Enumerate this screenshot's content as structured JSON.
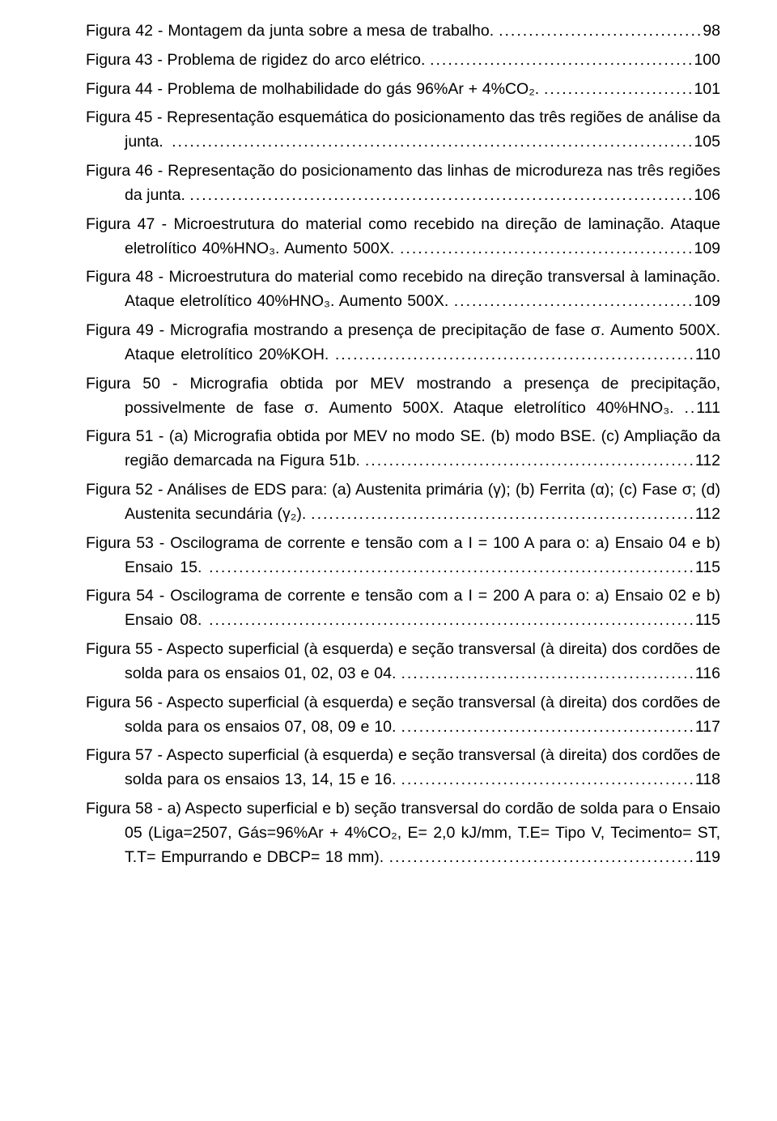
{
  "entries": [
    {
      "label": "Figura 42 - Montagem da junta sobre a mesa de trabalho.",
      "page": "98"
    },
    {
      "label": "Figura 43 - Problema de rigidez do arco elétrico.",
      "page": "100"
    },
    {
      "label": "Figura 44 - Problema de molhabilidade do gás 96%Ar + 4%CO₂.",
      "page": "101"
    },
    {
      "label": "Figura 45 - Representação esquemática do posicionamento das três regiões de análise da junta.",
      "page": "105"
    },
    {
      "label": "Figura 46 - Representação do posicionamento das linhas de microdureza nas três regiões da junta.",
      "page": "106"
    },
    {
      "label": "Figura 47 - Microestrutura do material como recebido na direção de laminação. Ataque eletrolítico 40%HNO₃. Aumento 500X.",
      "page": "109"
    },
    {
      "label": "Figura 48 - Microestrutura do material como recebido na direção transversal à laminação. Ataque eletrolítico 40%HNO₃. Aumento 500X.",
      "page": "109"
    },
    {
      "label": "Figura 49 - Micrografia mostrando a presença de precipitação de fase σ. Aumento 500X. Ataque eletrolítico 20%KOH.",
      "page": "110"
    },
    {
      "label": "Figura 50 - Micrografia obtida por MEV mostrando a presença de precipitação, possivelmente de fase σ. Aumento 500X. Ataque eletrolítico 40%HNO₃.",
      "page": "111",
      "dots": ".."
    },
    {
      "label": "Figura 51 - (a) Micrografia obtida por MEV no modo SE. (b) modo BSE. (c) Ampliação da região demarcada na Figura 51b.",
      "page": "112"
    },
    {
      "label": "Figura 52 - Análises de EDS para: (a) Austenita primária (γ); (b) Ferrita (α); (c) Fase σ; (d) Austenita secundária (γ₂).",
      "page": "112"
    },
    {
      "label": "Figura 53 - Oscilograma de corrente e tensão com a I = 100 A para o: a) Ensaio 04 e b) Ensaio 15.",
      "page": "115"
    },
    {
      "label": "Figura 54 - Oscilograma de corrente e tensão com a I = 200 A para o: a) Ensaio 02 e b) Ensaio 08.",
      "page": "115"
    },
    {
      "label": "Figura 55 - Aspecto superficial (à esquerda) e seção transversal (à direita) dos cordões de solda para os ensaios 01, 02, 03 e 04.",
      "page": "116"
    },
    {
      "label": "Figura 56 - Aspecto superficial (à esquerda) e seção transversal (à direita) dos cordões de solda para os ensaios 07, 08, 09 e 10.",
      "page": "117"
    },
    {
      "label": "Figura 57 - Aspecto superficial (à esquerda) e seção transversal (à direita) dos cordões de solda para os ensaios 13, 14, 15 e 16.",
      "page": "118"
    },
    {
      "label": "Figura 58 - a) Aspecto superficial e b) seção transversal do cordão de solda para o Ensaio 05 (Liga=2507, Gás=96%Ar + 4%CO₂, E= 2,0 kJ/mm, T.E= Tipo V, Tecimento= ST, T.T= Empurrando e DBCP= 18 mm).",
      "page": "119"
    }
  ]
}
